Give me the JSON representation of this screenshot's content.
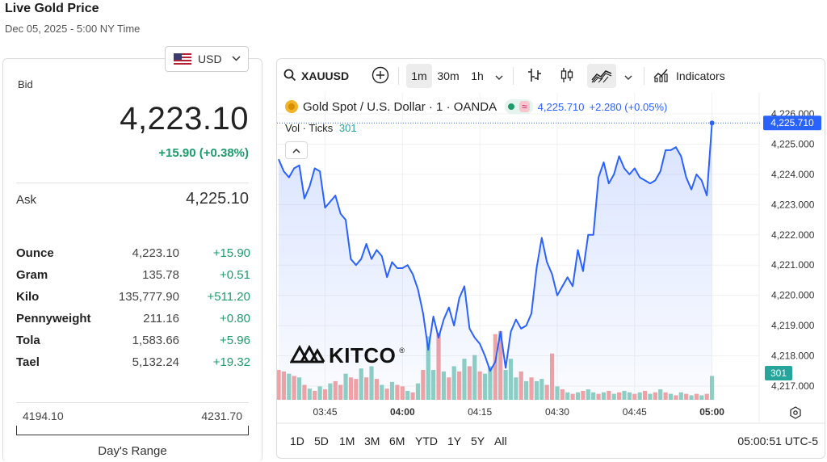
{
  "header": {
    "title": "Live Gold Price",
    "subtitle": "Dec 05, 2025 - 5:00 NY Time"
  },
  "currency": {
    "selected": "USD",
    "flag_icon": "us-flag-icon"
  },
  "quote": {
    "bid_label": "Bid",
    "bid": "4,223.10",
    "bid_change": "+15.90 (+0.38%)",
    "ask_label": "Ask",
    "ask": "4,225.10"
  },
  "units": [
    {
      "name": "Ounce",
      "price": "4,223.10",
      "change": "+15.90"
    },
    {
      "name": "Gram",
      "price": "135.78",
      "change": "+0.51"
    },
    {
      "name": "Kilo",
      "price": "135,777.90",
      "change": "+511.20"
    },
    {
      "name": "Pennyweight",
      "price": "211.16",
      "change": "+0.80"
    },
    {
      "name": "Tola",
      "price": "1,583.66",
      "change": "+5.96"
    },
    {
      "name": "Tael",
      "price": "5,132.24",
      "change": "+19.32"
    }
  ],
  "day_range": {
    "low": "4194.10",
    "high": "4231.70",
    "label": "Day's Range"
  },
  "chart": {
    "toolbar": {
      "symbol": "XAUUSD",
      "intervals": [
        "1m",
        "30m",
        "1h"
      ],
      "active_interval": "1m",
      "indicators_label": "Indicators"
    },
    "legend": {
      "title": "Gold Spot / U.S. Dollar · 1 · OANDA",
      "approx_symbol": "≈",
      "last_price": "4,225.710",
      "change": "+2.280 (+0.05%)",
      "vol_label": "Vol · Ticks",
      "vol_value": "301"
    },
    "logo_text": "KITCO",
    "logo_reg": "®",
    "ranges": [
      "1D",
      "5D",
      "1M",
      "3M",
      "6M",
      "YTD",
      "1Y",
      "5Y",
      "All"
    ],
    "clock": "05:00:51 UTC-5",
    "price_badge": "4,225.710",
    "volume_badge": "301",
    "accent_color": "#2962ff",
    "up_volume_color": "#8fd0c3",
    "down_volume_color": "#f2a3a3"
  },
  "chart_data": {
    "type": "line",
    "title": "Gold Spot / U.S. Dollar · 1 · OANDA",
    "x_tick_labels": [
      "03:45",
      "04:00",
      "04:15",
      "04:30",
      "04:45",
      "05:00"
    ],
    "y_tick_labels": [
      "4,226.000",
      "4,225.000",
      "4,224.000",
      "4,223.000",
      "4,222.000",
      "4,221.000",
      "4,220.000",
      "4,219.000",
      "4,218.000",
      "4,217.000"
    ],
    "ylim": [
      4216.8,
      4226.2
    ],
    "x_unit": "minutes since 03:36",
    "xlim": [
      0,
      86
    ],
    "series": [
      {
        "values": [
          [
            0,
            4224.5
          ],
          [
            1,
            4224.1
          ],
          [
            2,
            4223.9
          ],
          [
            3,
            4224.2
          ],
          [
            4,
            4224.3
          ],
          [
            5,
            4223.2
          ],
          [
            6,
            4223.6
          ],
          [
            7,
            4224.2
          ],
          [
            8,
            4224.1
          ],
          [
            9,
            4222.9
          ],
          [
            10,
            4223.1
          ],
          [
            11,
            4223.3
          ],
          [
            12,
            4222.7
          ],
          [
            13,
            4222.5
          ],
          [
            14,
            4221.2
          ],
          [
            15,
            4221.0
          ],
          [
            16,
            4221.2
          ],
          [
            17,
            4221.7
          ],
          [
            18,
            4221.2
          ],
          [
            19,
            4221.5
          ],
          [
            20,
            4221.3
          ],
          [
            21,
            4220.6
          ],
          [
            22,
            4221.1
          ],
          [
            23,
            4220.9
          ],
          [
            24,
            4220.9
          ],
          [
            25,
            4221.0
          ],
          [
            26,
            4220.7
          ],
          [
            27,
            4220.2
          ],
          [
            28,
            4219.4
          ],
          [
            29,
            4218.2
          ],
          [
            30,
            4219.3
          ],
          [
            31,
            4218.6
          ],
          [
            32,
            4219.2
          ],
          [
            33,
            4219.6
          ],
          [
            34,
            4219.0
          ],
          [
            35,
            4219.9
          ],
          [
            36,
            4220.3
          ],
          [
            37,
            4218.9
          ],
          [
            38,
            4218.6
          ],
          [
            39,
            4218.4
          ],
          [
            40,
            4218.0
          ],
          [
            41,
            4217.5
          ],
          [
            42,
            4217.8
          ],
          [
            43,
            4218.8
          ],
          [
            44,
            4217.6
          ],
          [
            45,
            4218.8
          ],
          [
            46,
            4219.2
          ],
          [
            47,
            4218.9
          ],
          [
            48,
            4219.0
          ],
          [
            49,
            4219.4
          ],
          [
            50,
            4220.9
          ],
          [
            51,
            4221.9
          ],
          [
            52,
            4221.1
          ],
          [
            53,
            4220.7
          ],
          [
            54,
            4220.0
          ],
          [
            55,
            4220.3
          ],
          [
            56,
            4220.6
          ],
          [
            57,
            4220.3
          ],
          [
            58,
            4221.5
          ],
          [
            59,
            4220.8
          ],
          [
            60,
            4222.0
          ],
          [
            61,
            4222.0
          ],
          [
            62,
            4223.9
          ],
          [
            63,
            4224.4
          ],
          [
            64,
            4223.7
          ],
          [
            65,
            4224.0
          ],
          [
            66,
            4224.6
          ],
          [
            67,
            4224.2
          ],
          [
            68,
            4224.0
          ],
          [
            69,
            4224.2
          ],
          [
            70,
            4223.9
          ],
          [
            71,
            4223.8
          ],
          [
            72,
            4223.7
          ],
          [
            73,
            4223.8
          ],
          [
            74,
            4224.1
          ],
          [
            75,
            4224.8
          ],
          [
            76,
            4224.8
          ],
          [
            77,
            4224.9
          ],
          [
            78,
            4224.6
          ],
          [
            79,
            4223.9
          ],
          [
            80,
            4223.5
          ],
          [
            81,
            4224.0
          ],
          [
            82,
            4223.8
          ],
          [
            83,
            4223.3
          ],
          [
            84,
            4225.7
          ]
        ]
      }
    ],
    "volume": [
      [
        0,
        40,
        "d"
      ],
      [
        1,
        38,
        "d"
      ],
      [
        2,
        35,
        "u"
      ],
      [
        3,
        32,
        "d"
      ],
      [
        4,
        30,
        "u"
      ],
      [
        5,
        20,
        "d"
      ],
      [
        6,
        15,
        "u"
      ],
      [
        7,
        12,
        "d"
      ],
      [
        8,
        18,
        "u"
      ],
      [
        9,
        14,
        "d"
      ],
      [
        10,
        22,
        "u"
      ],
      [
        11,
        25,
        "d"
      ],
      [
        12,
        20,
        "d"
      ],
      [
        13,
        35,
        "u"
      ],
      [
        14,
        30,
        "d"
      ],
      [
        15,
        28,
        "d"
      ],
      [
        16,
        42,
        "u"
      ],
      [
        17,
        30,
        "d"
      ],
      [
        18,
        45,
        "u"
      ],
      [
        19,
        28,
        "d"
      ],
      [
        20,
        20,
        "u"
      ],
      [
        21,
        15,
        "d"
      ],
      [
        22,
        24,
        "u"
      ],
      [
        23,
        20,
        "d"
      ],
      [
        24,
        18,
        "d"
      ],
      [
        25,
        12,
        "u"
      ],
      [
        26,
        10,
        "d"
      ],
      [
        27,
        22,
        "u"
      ],
      [
        28,
        40,
        "d"
      ],
      [
        29,
        85,
        "u"
      ],
      [
        30,
        40,
        "u"
      ],
      [
        31,
        90,
        "d"
      ],
      [
        32,
        38,
        "u"
      ],
      [
        33,
        30,
        "d"
      ],
      [
        34,
        45,
        "u"
      ],
      [
        35,
        38,
        "d"
      ],
      [
        36,
        55,
        "u"
      ],
      [
        37,
        45,
        "d"
      ],
      [
        38,
        60,
        "u"
      ],
      [
        39,
        38,
        "d"
      ],
      [
        40,
        35,
        "u"
      ],
      [
        41,
        45,
        "u"
      ],
      [
        42,
        88,
        "d"
      ],
      [
        43,
        92,
        "d"
      ],
      [
        44,
        40,
        "u"
      ],
      [
        45,
        55,
        "u"
      ],
      [
        46,
        30,
        "u"
      ],
      [
        47,
        38,
        "d"
      ],
      [
        48,
        25,
        "u"
      ],
      [
        49,
        30,
        "d"
      ],
      [
        50,
        25,
        "u"
      ],
      [
        51,
        28,
        "u"
      ],
      [
        52,
        20,
        "d"
      ],
      [
        53,
        62,
        "d"
      ],
      [
        54,
        18,
        "u"
      ],
      [
        55,
        14,
        "d"
      ],
      [
        56,
        10,
        "u"
      ],
      [
        57,
        8,
        "d"
      ],
      [
        58,
        10,
        "u"
      ],
      [
        59,
        12,
        "d"
      ],
      [
        60,
        14,
        "u"
      ],
      [
        61,
        10,
        "u"
      ],
      [
        62,
        8,
        "d"
      ],
      [
        63,
        10,
        "u"
      ],
      [
        64,
        12,
        "d"
      ],
      [
        65,
        8,
        "u"
      ],
      [
        66,
        10,
        "d"
      ],
      [
        67,
        12,
        "u"
      ],
      [
        68,
        10,
        "u"
      ],
      [
        69,
        8,
        "d"
      ],
      [
        70,
        10,
        "u"
      ],
      [
        71,
        12,
        "d"
      ],
      [
        72,
        8,
        "u"
      ],
      [
        73,
        10,
        "d"
      ],
      [
        74,
        14,
        "u"
      ],
      [
        75,
        10,
        "d"
      ],
      [
        76,
        8,
        "u"
      ],
      [
        77,
        6,
        "d"
      ],
      [
        78,
        10,
        "u"
      ],
      [
        79,
        8,
        "d"
      ],
      [
        80,
        6,
        "u"
      ],
      [
        81,
        8,
        "d"
      ],
      [
        82,
        6,
        "u"
      ],
      [
        83,
        8,
        "d"
      ],
      [
        84,
        32,
        "u"
      ]
    ]
  }
}
